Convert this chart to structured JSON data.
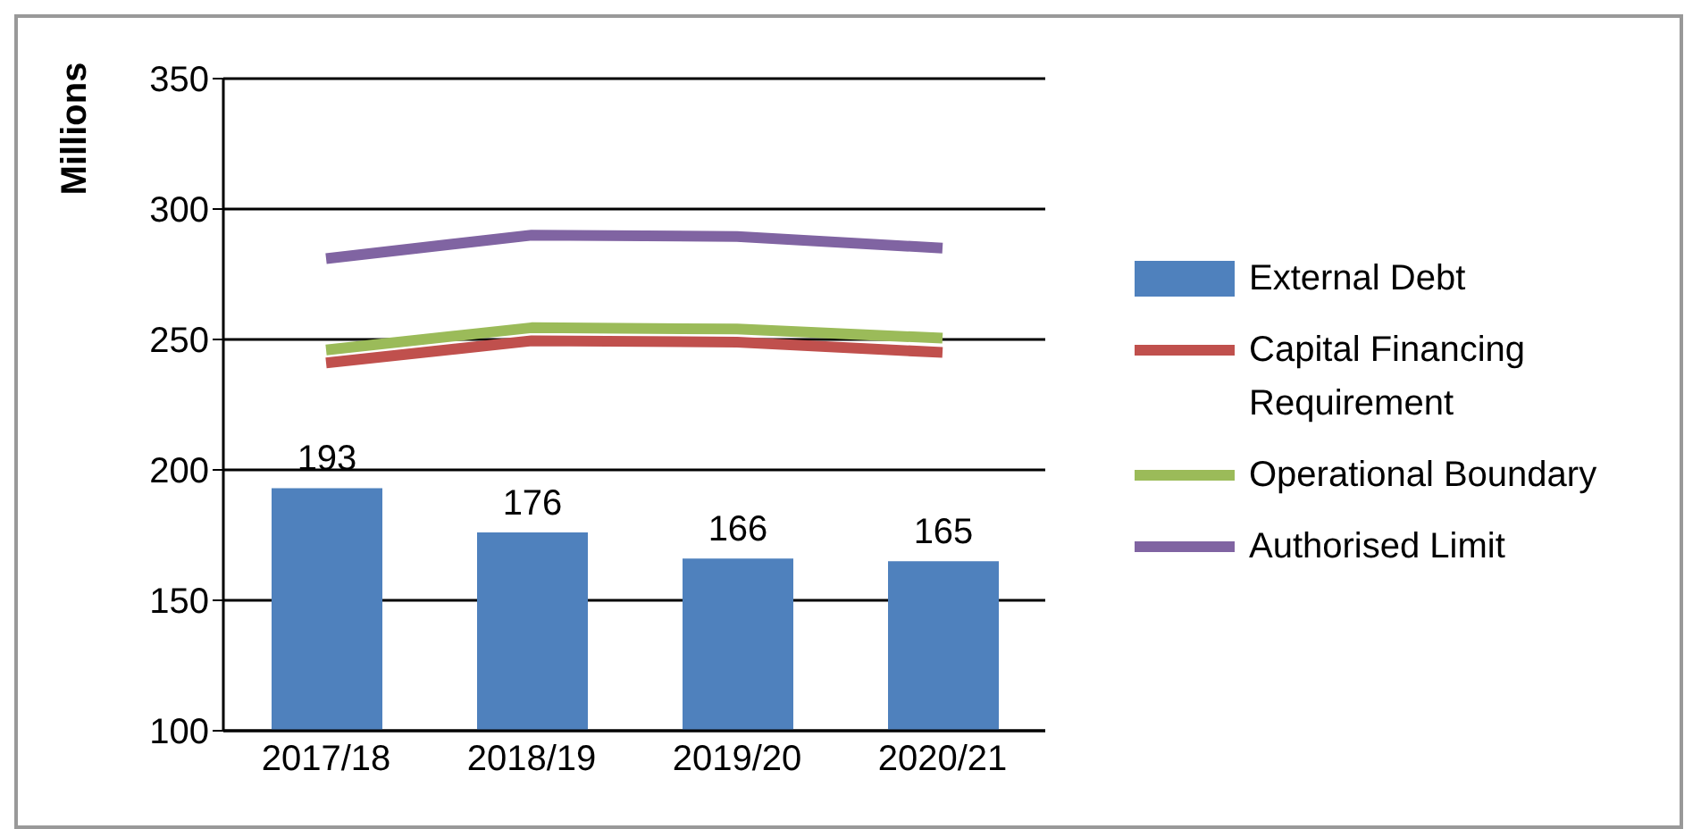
{
  "chart_data": {
    "type": "bar",
    "ylabel": "Millions",
    "categories": [
      "2017/18",
      "2018/19",
      "2019/20",
      "2020/21"
    ],
    "series": [
      {
        "name": "External Debt",
        "color": "#4f81bd",
        "values": [
          193,
          176,
          166,
          165
        ],
        "value_labels": [
          "193",
          "176",
          "166",
          "165"
        ]
      },
      {
        "name": "Capital Financing Requirement",
        "type": "line",
        "color": "#c0504d",
        "values": [
          241,
          249.5,
          249,
          245
        ]
      },
      {
        "name": "Operational Boundary",
        "type": "line",
        "color": "#9bbb59",
        "values": [
          246,
          254.5,
          254,
          250.5
        ]
      },
      {
        "name": "Authorised Limit",
        "type": "line",
        "color": "#8064a2",
        "values": [
          281,
          290,
          289.5,
          285
        ]
      }
    ],
    "ylim": [
      100,
      350
    ],
    "yticks": [
      100,
      150,
      200,
      250,
      300,
      350
    ],
    "grid": "y",
    "legend": "right",
    "marker": "none"
  }
}
